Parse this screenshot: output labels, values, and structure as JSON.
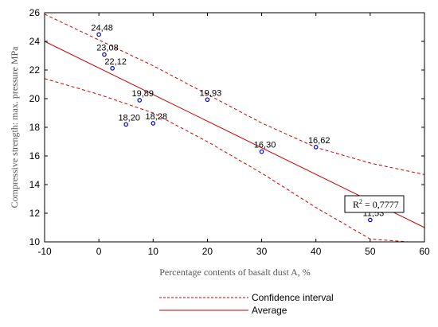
{
  "chart_data": {
    "type": "scatter",
    "title": "",
    "xlabel": "Percentage contents of basalt dust A, %",
    "ylabel": "Compressive strength: max. pressure MPa",
    "xlim": [
      -10,
      60
    ],
    "ylim": [
      10,
      26
    ],
    "xticks": [
      -10,
      0,
      10,
      20,
      30,
      40,
      50,
      60
    ],
    "yticks": [
      10,
      12,
      14,
      16,
      18,
      20,
      22,
      24,
      26
    ],
    "grid": false,
    "points": [
      {
        "x": 0,
        "y": 24.48,
        "label": "24,48"
      },
      {
        "x": 1,
        "y": 23.08,
        "label": "23,08"
      },
      {
        "x": 2.5,
        "y": 22.12,
        "label": "22,12"
      },
      {
        "x": 7.5,
        "y": 19.89,
        "label": "19,89"
      },
      {
        "x": 5,
        "y": 18.2,
        "label": "18,20"
      },
      {
        "x": 10,
        "y": 18.28,
        "label": "18,28"
      },
      {
        "x": 20,
        "y": 19.93,
        "label": "19,93"
      },
      {
        "x": 30,
        "y": 16.3,
        "label": "16,30"
      },
      {
        "x": 40,
        "y": 16.62,
        "label": "16,62"
      },
      {
        "x": 50,
        "y": 11.53,
        "label": "11,53"
      }
    ],
    "fit_line": {
      "name": "Average",
      "x": [
        -10,
        60
      ],
      "y": [
        24.0,
        11.0
      ],
      "color": "#cc0000",
      "style": "solid"
    },
    "confidence_upper": {
      "x": [
        -10,
        0,
        10,
        20,
        30,
        40,
        50,
        60
      ],
      "y": [
        25.9,
        24.1,
        22.3,
        20.3,
        18.3,
        16.6,
        15.5,
        14.7
      ]
    },
    "confidence_lower": {
      "x": [
        -10,
        0,
        10,
        20,
        30,
        40,
        50,
        57
      ],
      "y": [
        21.4,
        20.3,
        19.0,
        17.0,
        14.8,
        12.4,
        10.2,
        10.0
      ]
    },
    "confidence_name": "Confidence interval",
    "r2_label": "R",
    "r2_exp": "2",
    "r2_value": " = 0,7777",
    "point_color": "#0000cc",
    "line_color": "#cc0000",
    "legend_position": "bottom-center"
  }
}
